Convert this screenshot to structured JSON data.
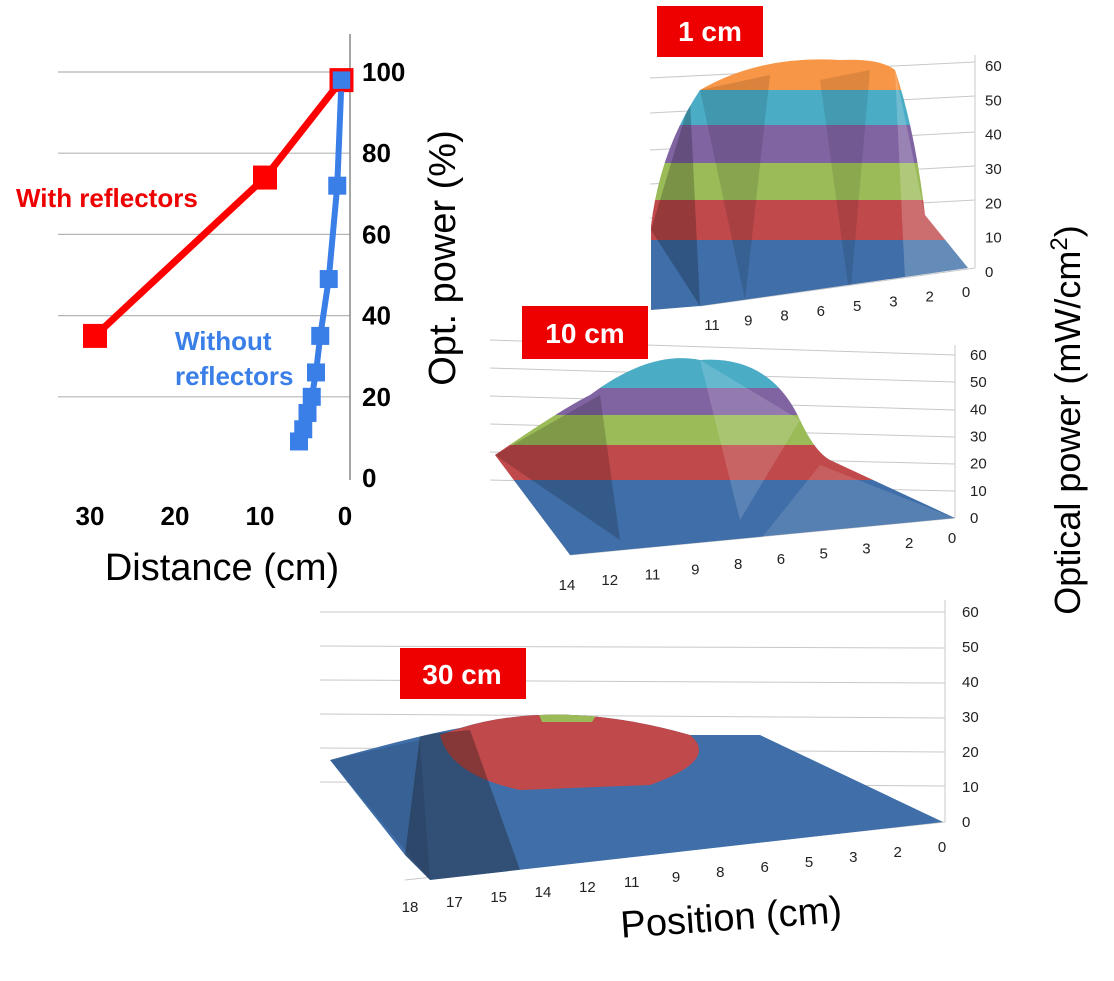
{
  "colors": {
    "with_reflectors": "#ff0000",
    "without_reflectors": "#3a7ee8",
    "badge_bg": "#ee0000",
    "surface_bands": [
      "#3f6ea8",
      "#c0494b",
      "#9bbb59",
      "#8064a2",
      "#4bacc6",
      "#f79646"
    ]
  },
  "chart_data": [
    {
      "type": "line",
      "xlabel": "Distance (cm)",
      "ylabel": "Opt. power (%)",
      "xlim": [
        0,
        35
      ],
      "x_reversed": true,
      "ylim": [
        0,
        100
      ],
      "x_ticks": [
        "30",
        "20",
        "10",
        "0"
      ],
      "y_ticks": [
        "0",
        "20",
        "40",
        "60",
        "80",
        "100"
      ],
      "grid": "horizontal",
      "series": [
        {
          "name": "With reflectors",
          "color": "#ff0000",
          "marker": "square",
          "x": [
            30,
            10,
            1
          ],
          "y": [
            35,
            74,
            98
          ]
        },
        {
          "name": "Without reflectors",
          "color": "#3a7ee8",
          "marker": "square",
          "x": [
            1,
            1.5,
            2.5,
            3.5,
            4,
            4.5,
            5,
            5.5,
            6
          ],
          "y": [
            98,
            72,
            49,
            35,
            26,
            20,
            16,
            12,
            9
          ]
        }
      ]
    },
    {
      "type": "surface",
      "annotation": "1 cm",
      "x_ticks": [
        "11",
        "9",
        "8",
        "6",
        "5",
        "3",
        "2",
        "0"
      ],
      "z_ticks": [
        "0",
        "10",
        "20",
        "30",
        "40",
        "50",
        "60"
      ],
      "zlim": [
        0,
        60
      ],
      "peak_z": 58
    },
    {
      "type": "surface",
      "annotation": "10 cm",
      "x_ticks": [
        "14",
        "12",
        "11",
        "9",
        "8",
        "6",
        "5",
        "3",
        "2",
        "0"
      ],
      "z_ticks": [
        "0",
        "10",
        "20",
        "30",
        "40",
        "50",
        "60"
      ],
      "zlim": [
        0,
        60
      ],
      "peak_z": 55
    },
    {
      "type": "surface",
      "annotation": "30 cm",
      "xlabel": "Position (cm)",
      "zlabel": "Optical power (mW/cm",
      "zlabel_sup": "2",
      "zlabel_end": ")",
      "x_ticks": [
        "18",
        "17",
        "15",
        "14",
        "12",
        "11",
        "9",
        "8",
        "6",
        "5",
        "3",
        "2",
        "0"
      ],
      "z_ticks": [
        "0",
        "10",
        "20",
        "30",
        "40",
        "50",
        "60"
      ],
      "zlim": [
        0,
        60
      ],
      "peak_z": 33
    }
  ]
}
